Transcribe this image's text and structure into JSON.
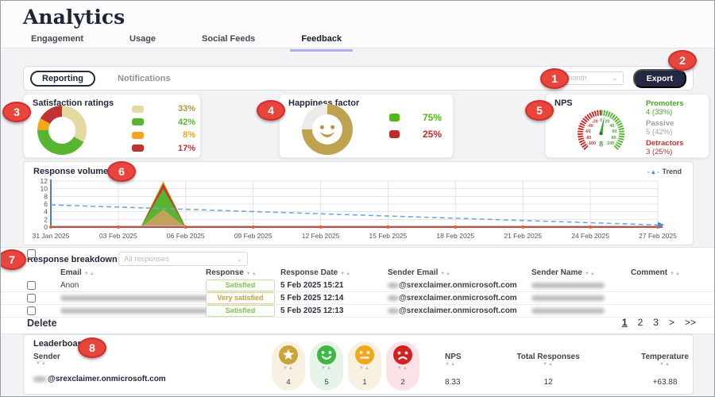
{
  "page": {
    "title": "Analytics"
  },
  "tabs": [
    {
      "label": "Engagement",
      "active": false
    },
    {
      "label": "Usage",
      "active": false
    },
    {
      "label": "Social Feeds",
      "active": false
    },
    {
      "label": "Feedback",
      "active": true
    }
  ],
  "toolbar": {
    "reporting_label": "Reporting",
    "notifications_label": "Notifications",
    "period_value": "This month",
    "export_label": "Export"
  },
  "annotations": [
    "1",
    "2",
    "3",
    "4",
    "5",
    "6",
    "7",
    "8"
  ],
  "breakdown": {
    "title": "Response breakdown",
    "filter_value": "All responses",
    "columns": [
      "Email",
      "Response",
      "Response Date",
      "Sender Email",
      "Sender Name",
      "Comment"
    ],
    "rows": [
      {
        "email": "Anon",
        "email_blurred": false,
        "response": "Satisfied",
        "response_class": "satisfied",
        "date": "5 Feb 2025 15:21",
        "sender_email": "@srexclaimer.onmicrosoft.com",
        "sender_name_blurred": true
      },
      {
        "email": "",
        "email_blurred": true,
        "response": "Very satisfied",
        "response_class": "very-satisfied",
        "date": "5 Feb 2025 12:14",
        "sender_email": "@srexclaimer.onmicrosoft.com",
        "sender_name_blurred": true
      },
      {
        "email": "",
        "email_blurred": true,
        "response": "Satisfied",
        "response_class": "satisfied",
        "date": "5 Feb 2025 12:13",
        "sender_email": "@srexclaimer.onmicrosoft.com",
        "sender_name_blurred": true
      }
    ],
    "delete_label": "Delete",
    "pagination": {
      "pages": [
        "1",
        "2",
        "3"
      ],
      "next": ">",
      "last": ">>"
    }
  },
  "leaderboard": {
    "title": "Leaderboard",
    "headers": {
      "sender": "Sender",
      "nps": "NPS",
      "total": "Total Responses",
      "temp": "Temperature"
    },
    "icon_columns": [
      "star-icon",
      "happy-face-icon",
      "neutral-face-icon",
      "sad-face-icon"
    ],
    "row": {
      "sender_domain": "@srexclaimer.onmicrosoft.com",
      "star": "4",
      "happy": "5",
      "neutral": "1",
      "sad": "2",
      "nps": "8.33",
      "total": "12",
      "temp": "+63.88"
    }
  },
  "chart_data": [
    {
      "id": "satisfaction-donut",
      "type": "pie",
      "title": "Satisfaction ratings",
      "donut": true,
      "slices": [
        {
          "color": "#e4d9a0",
          "text_color": "#b3973f",
          "value": 33,
          "label": "33%"
        },
        {
          "color": "#57b531",
          "text_color": "#57b531",
          "value": 42,
          "label": "42%"
        },
        {
          "color": "#f2a51d",
          "text_color": "#f2a51d",
          "value": 8,
          "label": "8%"
        },
        {
          "color": "#bf3330",
          "text_color": "#bf3330",
          "value": 17,
          "label": "17%"
        }
      ],
      "legend_position": "right"
    },
    {
      "id": "happiness-donut",
      "type": "pie",
      "title": "Happiness factor",
      "donut": true,
      "center_icon": "smiley",
      "slices": [
        {
          "color": "#bfa24d",
          "value": 75,
          "label": "75%"
        },
        {
          "color": "#ebebe9",
          "value": 25,
          "label": "25%"
        }
      ],
      "legend": [
        {
          "color": "#4cbb17",
          "label": "75%"
        },
        {
          "color": "#c02b2b",
          "label": "25%"
        }
      ],
      "legend_position": "right"
    },
    {
      "id": "nps-gauge",
      "type": "gauge",
      "title": "NPS",
      "min": -100,
      "max": 100,
      "value": 8,
      "tick_labels": [
        -100,
        -80,
        -60,
        -40,
        -20,
        0,
        20,
        40,
        60,
        80,
        100
      ],
      "negative_color": "#cc2525",
      "positive_color": "#55b42e",
      "stats": [
        {
          "label": "Promoters",
          "value": "4 (33%)",
          "color": "#4ca52e"
        },
        {
          "label": "Passive",
          "value": "5 (42%)",
          "color": "#9b9fa6"
        },
        {
          "label": "Detractors",
          "value": "3 (25%)",
          "color": "#c23434"
        }
      ]
    },
    {
      "id": "response-volume",
      "type": "area",
      "title": "Response volume",
      "x_tick_labels": [
        "31 Jan 2025",
        "03 Feb 2025",
        "06 Feb 2025",
        "09 Feb 2025",
        "12 Feb 2025",
        "15 Feb 2025",
        "18 Feb 2025",
        "21 Feb 2025",
        "24 Feb 2025",
        "27 Feb 2025"
      ],
      "days_total": 27,
      "ylim": [
        0,
        12
      ],
      "y_ticks": [
        0,
        2,
        4,
        6,
        8,
        10,
        12
      ],
      "grid": true,
      "spike": {
        "note": "single stacked spike, days offset from 31 Jan 2025 (responses on 5 Feb 2025)",
        "start_day": 4,
        "peak_day": 5,
        "end_day": 6,
        "layers_cumulative": [
          {
            "color": "#cdb42e",
            "peak": 12
          },
          {
            "color": "#c43b2d",
            "peak": 11.4
          },
          {
            "color": "#57b531",
            "peak": 10
          },
          {
            "color": "#c2a15c",
            "peak": 4.6
          }
        ]
      },
      "trend": {
        "name": "Trend",
        "color": "#76a7dc",
        "start_value": 5.8,
        "end_value": 0.55
      },
      "axis_colors": {
        "y_axis": "#4a7cc7",
        "x_axis": "#cf4a33",
        "tick_marker": "#e2622f"
      },
      "legend_position": "top-right"
    }
  ]
}
